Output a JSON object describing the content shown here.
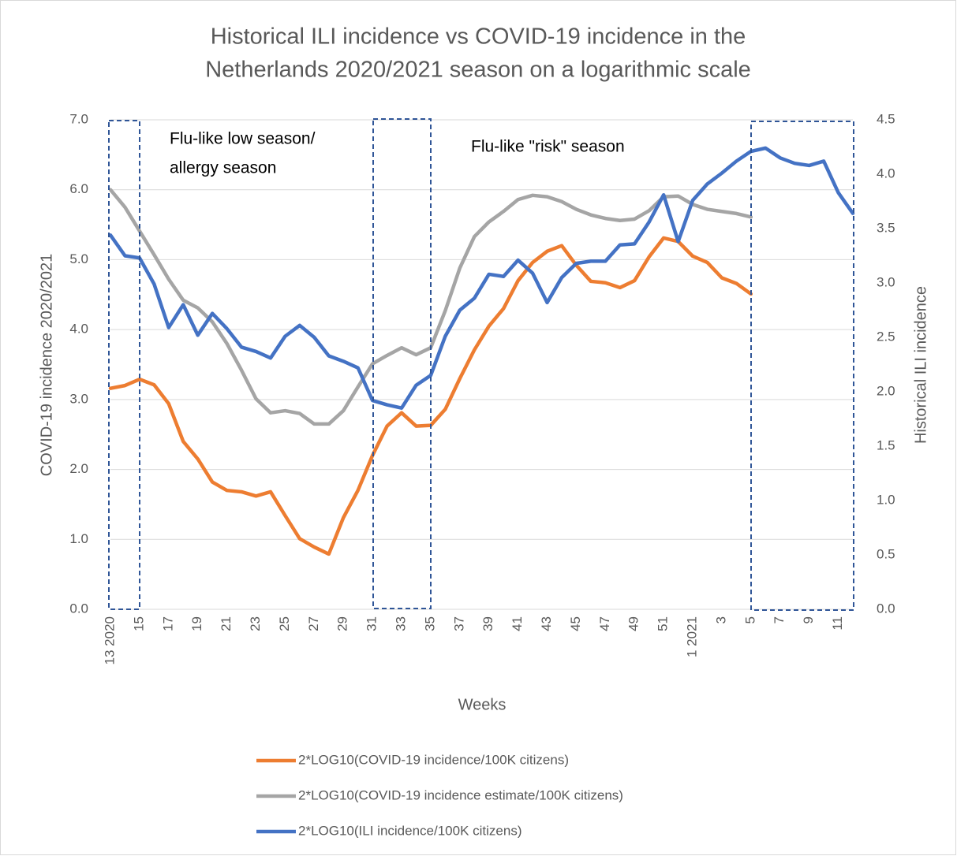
{
  "chart_data": {
    "type": "line",
    "title": [
      "Historical ILI incidence vs COVID-19 incidence in the",
      "Netherlands 2020/2021 season on a logarithmic scale"
    ],
    "x_label": "Weeks",
    "y_label": "COVID-19 incidence 2020/2021",
    "y2_label": "Historical ILI incidence",
    "annotations": [
      [
        "Flu-like low season/",
        "allergy season"
      ],
      [
        "Flu-like \"risk\" season"
      ]
    ],
    "categories": [
      "13 2020",
      null,
      "15",
      null,
      "17",
      null,
      "19",
      null,
      "21",
      null,
      "23",
      null,
      "25",
      null,
      "27",
      null,
      "29",
      null,
      "31",
      null,
      "33",
      null,
      "35",
      null,
      "37",
      null,
      "39",
      null,
      "41",
      null,
      "43",
      null,
      "45",
      null,
      "47",
      null,
      "49",
      null,
      "51",
      null,
      "1 2021",
      null,
      "3",
      null,
      "5",
      null,
      "7",
      null,
      "9",
      null,
      "11",
      null
    ],
    "ylim": [
      0,
      7
    ],
    "yticks": [
      {
        "value": 0,
        "label": "0.0"
      },
      {
        "value": 1,
        "label": "1.0"
      },
      {
        "value": 2,
        "label": "2.0"
      },
      {
        "value": 3,
        "label": "3.0"
      },
      {
        "value": 4,
        "label": "4.0"
      },
      {
        "value": 5,
        "label": "5.0"
      },
      {
        "value": 6,
        "label": "6.0"
      },
      {
        "value": 7,
        "label": "7.0"
      }
    ],
    "y2lim": [
      0,
      4.5
    ],
    "y2ticks": [
      {
        "value": 0,
        "label": "0.0"
      },
      0.5,
      {
        "value": 1,
        "label": "1.0"
      },
      1.5,
      {
        "value": 2,
        "label": "2.0"
      },
      2.5,
      {
        "value": 3,
        "label": "3.0"
      },
      3.5,
      {
        "value": 4,
        "label": "4.0"
      },
      4.5
    ],
    "grid": true,
    "series": [
      {
        "name": "2*LOG10(COVID-19 incidence/100K citizens)",
        "color": "#ed7d31",
        "values": [
          3.16,
          3.2,
          3.29,
          3.21,
          2.94,
          2.4,
          2.15,
          1.82,
          1.7,
          1.68,
          1.62,
          1.68,
          1.34,
          1.01,
          0.89,
          0.79,
          1.31,
          1.7,
          2.2,
          2.62,
          2.81,
          2.62,
          2.63,
          2.86,
          3.3,
          3.71,
          4.05,
          4.3,
          4.7,
          4.96,
          5.12,
          5.2,
          4.92,
          4.69,
          4.67,
          4.6,
          4.7,
          5.04,
          5.31,
          5.26,
          5.05,
          4.96,
          4.74,
          4.66,
          4.51,
          null,
          null,
          null,
          null,
          null,
          null,
          null
        ]
      },
      {
        "name": "2*LOG10(COVID-19 incidence estimate/100K citizens)",
        "color": "#a5a5a5",
        "values": [
          6.0,
          5.75,
          5.41,
          5.07,
          4.72,
          4.42,
          4.31,
          4.11,
          3.8,
          3.42,
          3.01,
          2.81,
          2.84,
          2.8,
          2.65,
          2.65,
          2.84,
          3.18,
          3.51,
          3.63,
          3.74,
          3.64,
          3.74,
          4.27,
          4.88,
          5.33,
          5.54,
          5.69,
          5.86,
          5.92,
          5.9,
          5.83,
          5.72,
          5.64,
          5.59,
          5.56,
          5.58,
          5.7,
          5.9,
          5.91,
          5.79,
          5.72,
          5.69,
          5.66,
          5.61,
          null,
          null,
          null,
          null,
          null,
          null,
          null
        ]
      },
      {
        "name": "2*LOG10(ILI incidence/100K citizens)",
        "color": "#4472c4",
        "axis": "y2",
        "values": [
          3.44,
          3.25,
          3.23,
          2.99,
          2.59,
          2.8,
          2.52,
          2.72,
          2.58,
          2.41,
          2.37,
          2.31,
          2.51,
          2.61,
          2.5,
          2.33,
          2.28,
          2.22,
          1.92,
          1.88,
          1.85,
          2.06,
          2.15,
          2.51,
          2.75,
          2.86,
          3.08,
          3.06,
          3.21,
          3.09,
          2.82,
          3.05,
          3.18,
          3.2,
          3.2,
          3.35,
          3.36,
          3.56,
          3.81,
          3.38,
          3.76,
          3.91,
          4.01,
          4.12,
          4.21,
          4.24,
          4.15,
          4.1,
          4.08,
          4.12,
          3.83,
          3.64
        ]
      }
    ]
  }
}
